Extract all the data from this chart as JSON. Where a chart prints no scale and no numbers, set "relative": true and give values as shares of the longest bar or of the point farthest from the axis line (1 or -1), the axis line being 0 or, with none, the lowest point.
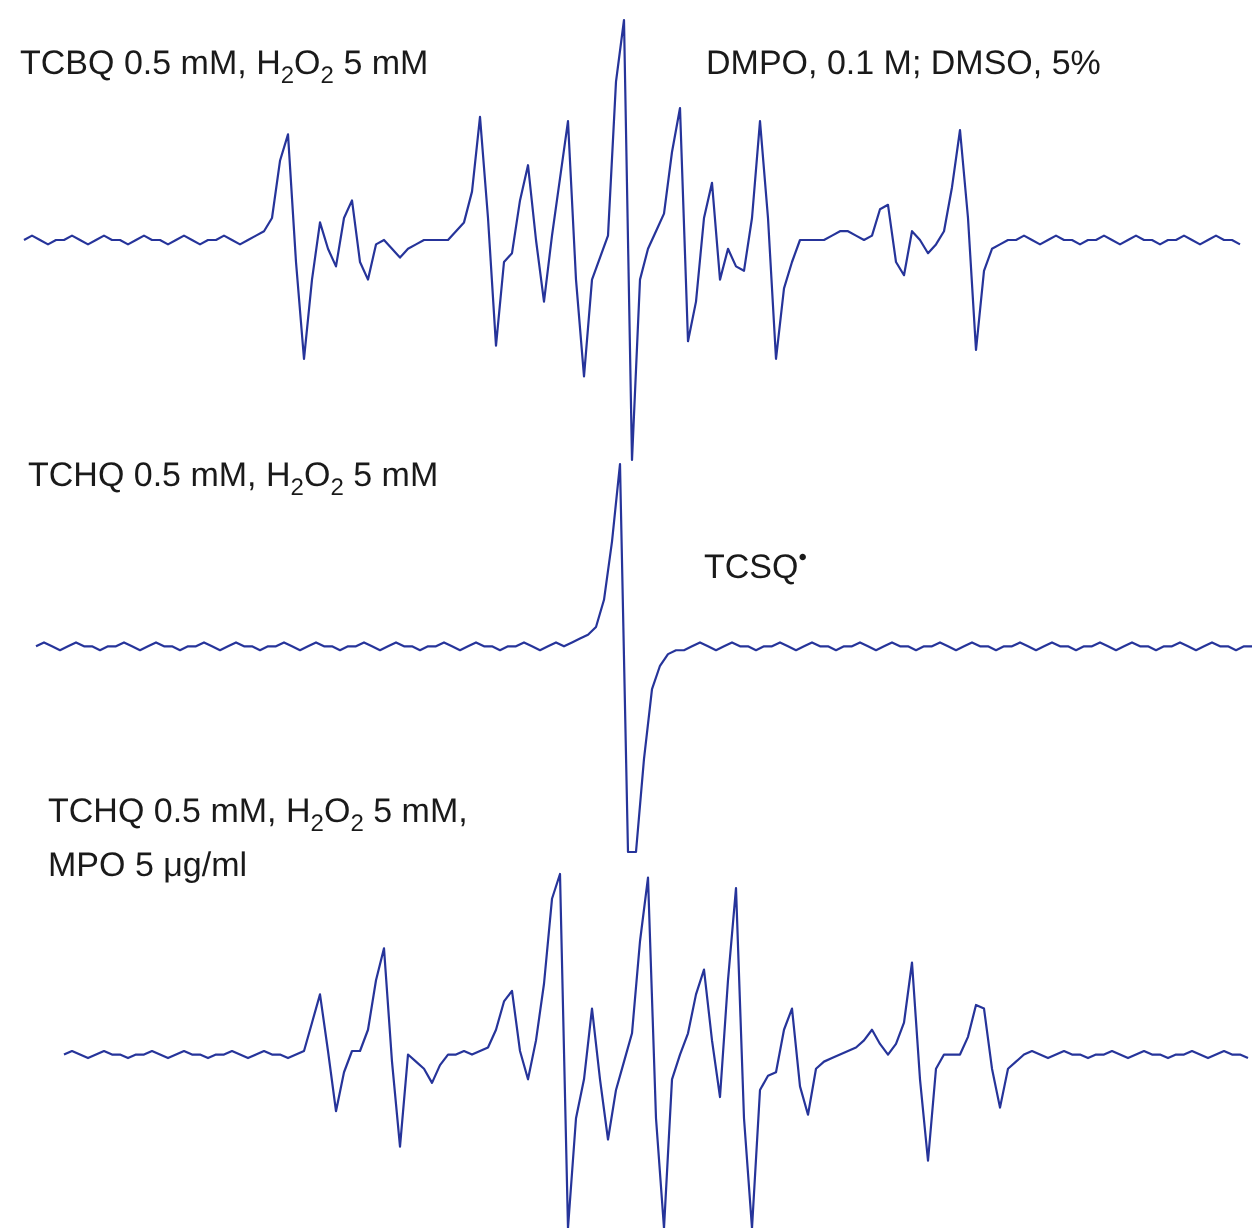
{
  "chart_data": [
    {
      "type": "line",
      "relative": true,
      "color": "#26349a",
      "annotations": [
        "TCBQ 0.5 mM, H$_{2}$O$_{2}$ 5 mM",
        "DMPO, 0.1 M; DMSO, 5%"
      ],
      "categories": [
        null,
        null,
        null,
        null,
        null,
        null,
        null,
        null,
        null,
        null,
        null,
        null,
        null,
        null,
        null,
        null,
        null,
        null,
        null,
        null,
        null,
        null,
        null,
        null,
        null,
        null,
        null,
        null,
        null,
        null,
        null,
        null,
        null,
        null,
        null,
        null,
        null,
        null,
        null,
        null,
        null,
        null,
        null,
        null,
        null,
        null,
        null,
        null,
        null,
        null,
        null,
        null,
        null,
        null,
        null,
        null,
        null,
        null,
        null,
        null,
        null,
        null,
        null,
        null,
        null,
        null,
        null,
        null,
        null,
        null,
        null,
        null,
        null,
        null,
        null,
        null,
        null,
        null,
        null,
        null,
        null,
        null,
        null,
        null,
        null,
        null,
        null,
        null,
        null,
        null,
        null,
        null,
        null,
        null,
        null,
        null,
        null,
        null,
        null,
        null,
        null,
        null,
        null,
        null,
        null,
        null,
        null,
        null,
        null,
        null,
        null,
        null,
        null,
        null,
        null,
        null,
        null,
        null,
        null,
        null,
        null,
        null,
        null,
        null,
        null,
        null,
        null,
        null,
        null,
        null,
        null,
        null,
        null,
        null,
        null,
        null,
        null,
        null,
        null,
        null,
        null,
        null,
        null,
        null,
        null,
        null,
        null,
        null,
        null,
        null,
        null,
        null,
        null
      ],
      "values": [
        0.5,
        0.51,
        0.5,
        0.49,
        0.5,
        0.5,
        0.51,
        0.5,
        0.49,
        0.5,
        0.51,
        0.5,
        0.5,
        0.49,
        0.5,
        0.51,
        0.5,
        0.5,
        0.49,
        0.5,
        0.51,
        0.5,
        0.49,
        0.5,
        0.5,
        0.51,
        0.5,
        0.49,
        0.5,
        0.51,
        0.52,
        0.55,
        0.68,
        0.74,
        0.45,
        0.23,
        0.41,
        0.54,
        0.48,
        0.44,
        0.55,
        0.59,
        0.45,
        0.41,
        0.49,
        0.5,
        0.48,
        0.46,
        0.48,
        0.49,
        0.5,
        0.5,
        0.5,
        0.5,
        0.52,
        0.54,
        0.61,
        0.78,
        0.55,
        0.26,
        0.45,
        0.47,
        0.59,
        0.67,
        0.5,
        0.36,
        0.51,
        0.64,
        0.77,
        0.41,
        0.19,
        0.41,
        0.46,
        0.51,
        0.86,
        1.0,
        0.0,
        0.41,
        0.48,
        0.52,
        0.56,
        0.7,
        0.8,
        0.27,
        0.36,
        0.55,
        0.63,
        0.41,
        0.48,
        0.44,
        0.43,
        0.55,
        0.77,
        0.55,
        0.23,
        0.39,
        0.45,
        0.5,
        0.5,
        0.5,
        0.5,
        0.51,
        0.52,
        0.52,
        0.51,
        0.5,
        0.51,
        0.57,
        0.58,
        0.45,
        0.42,
        0.52,
        0.5,
        0.47,
        0.49,
        0.52,
        0.62,
        0.75,
        0.55,
        0.25,
        0.43,
        0.48,
        0.49,
        0.5,
        0.5,
        0.51,
        0.5,
        0.49,
        0.5,
        0.51,
        0.5,
        0.5,
        0.49,
        0.5,
        0.5,
        0.51,
        0.5,
        0.49,
        0.5,
        0.51,
        0.5,
        0.5,
        0.49,
        0.5,
        0.5,
        0.51,
        0.5,
        0.49,
        0.5,
        0.51,
        0.5,
        0.5,
        0.49
      ]
    },
    {
      "type": "line",
      "relative": true,
      "color": "#26349a",
      "annotations": [
        "TCHQ 0.5 mM, H$_{2}$O$_{2}$ 5 mM",
        "TCSQ$^{•}$"
      ],
      "categories": [
        null,
        null,
        null,
        null,
        null,
        null,
        null,
        null,
        null,
        null,
        null,
        null,
        null,
        null,
        null,
        null,
        null,
        null,
        null,
        null,
        null,
        null,
        null,
        null,
        null,
        null,
        null,
        null,
        null,
        null,
        null,
        null,
        null,
        null,
        null,
        null,
        null,
        null,
        null,
        null,
        null,
        null,
        null,
        null,
        null,
        null,
        null,
        null,
        null,
        null,
        null,
        null,
        null,
        null,
        null,
        null,
        null,
        null,
        null,
        null,
        null,
        null,
        null,
        null,
        null,
        null,
        null,
        null,
        null,
        null,
        null,
        null,
        null,
        null,
        null,
        null,
        null,
        null,
        null,
        null,
        null,
        null,
        null,
        null,
        null,
        null,
        null,
        null,
        null,
        null,
        null,
        null,
        null,
        null,
        null,
        null,
        null,
        null,
        null,
        null,
        null,
        null,
        null,
        null,
        null,
        null,
        null,
        null,
        null,
        null,
        null,
        null,
        null,
        null,
        null,
        null,
        null,
        null,
        null,
        null,
        null,
        null,
        null,
        null,
        null,
        null,
        null,
        null,
        null,
        null,
        null,
        null,
        null,
        null,
        null,
        null,
        null,
        null,
        null,
        null,
        null,
        null,
        null,
        null,
        null,
        null,
        null,
        null,
        null,
        null,
        null,
        null,
        null
      ],
      "values": [
        0.53,
        0.54,
        0.53,
        0.52,
        0.53,
        0.54,
        0.53,
        0.53,
        0.52,
        0.53,
        0.53,
        0.54,
        0.53,
        0.52,
        0.53,
        0.54,
        0.53,
        0.53,
        0.52,
        0.53,
        0.53,
        0.54,
        0.53,
        0.52,
        0.53,
        0.54,
        0.53,
        0.53,
        0.52,
        0.53,
        0.53,
        0.54,
        0.53,
        0.52,
        0.53,
        0.54,
        0.53,
        0.53,
        0.52,
        0.53,
        0.53,
        0.54,
        0.53,
        0.52,
        0.53,
        0.54,
        0.53,
        0.53,
        0.52,
        0.53,
        0.53,
        0.54,
        0.53,
        0.52,
        0.53,
        0.54,
        0.53,
        0.53,
        0.52,
        0.53,
        0.53,
        0.54,
        0.53,
        0.52,
        0.53,
        0.54,
        0.53,
        0.54,
        0.55,
        0.56,
        0.58,
        0.65,
        0.8,
        1.0,
        0.0,
        0.0,
        0.24,
        0.42,
        0.48,
        0.51,
        0.52,
        0.52,
        0.53,
        0.54,
        0.53,
        0.52,
        0.53,
        0.54,
        0.53,
        0.53,
        0.52,
        0.53,
        0.53,
        0.54,
        0.53,
        0.52,
        0.53,
        0.54,
        0.53,
        0.53,
        0.52,
        0.53,
        0.53,
        0.54,
        0.53,
        0.52,
        0.53,
        0.54,
        0.53,
        0.53,
        0.52,
        0.53,
        0.53,
        0.54,
        0.53,
        0.52,
        0.53,
        0.54,
        0.53,
        0.53,
        0.52,
        0.53,
        0.53,
        0.54,
        0.53,
        0.52,
        0.53,
        0.54,
        0.53,
        0.53,
        0.52,
        0.53,
        0.53,
        0.54,
        0.53,
        0.52,
        0.53,
        0.54,
        0.53,
        0.53,
        0.52,
        0.53,
        0.53,
        0.54,
        0.53,
        0.52,
        0.53,
        0.54,
        0.53,
        0.53,
        0.52,
        0.53,
        0.53
      ]
    },
    {
      "type": "line",
      "relative": true,
      "color": "#26349a",
      "annotations": [
        "TCHQ 0.5 mM, H$_{2}$O$_{2}$ 5 mM,",
        "MPO 5 μg/ml"
      ],
      "categories": [
        null,
        null,
        null,
        null,
        null,
        null,
        null,
        null,
        null,
        null,
        null,
        null,
        null,
        null,
        null,
        null,
        null,
        null,
        null,
        null,
        null,
        null,
        null,
        null,
        null,
        null,
        null,
        null,
        null,
        null,
        null,
        null,
        null,
        null,
        null,
        null,
        null,
        null,
        null,
        null,
        null,
        null,
        null,
        null,
        null,
        null,
        null,
        null,
        null,
        null,
        null,
        null,
        null,
        null,
        null,
        null,
        null,
        null,
        null,
        null,
        null,
        null,
        null,
        null,
        null,
        null,
        null,
        null,
        null,
        null,
        null,
        null,
        null,
        null,
        null,
        null,
        null,
        null,
        null,
        null,
        null,
        null,
        null,
        null,
        null,
        null,
        null,
        null,
        null,
        null,
        null,
        null,
        null,
        null,
        null,
        null,
        null,
        null,
        null,
        null,
        null,
        null,
        null,
        null,
        null,
        null,
        null,
        null,
        null,
        null,
        null,
        null,
        null,
        null,
        null,
        null,
        null,
        null,
        null,
        null,
        null,
        null,
        null,
        null,
        null,
        null,
        null,
        null,
        null,
        null,
        null,
        null,
        null,
        null,
        null,
        null,
        null,
        null,
        null,
        null,
        null,
        null,
        null,
        null,
        null,
        null,
        null,
        null,
        null
      ],
      "values": [
        0.49,
        0.5,
        0.49,
        0.48,
        0.49,
        0.5,
        0.49,
        0.49,
        0.48,
        0.49,
        0.49,
        0.5,
        0.49,
        0.48,
        0.49,
        0.5,
        0.49,
        0.49,
        0.48,
        0.49,
        0.49,
        0.5,
        0.49,
        0.48,
        0.49,
        0.5,
        0.49,
        0.49,
        0.48,
        0.49,
        0.5,
        0.58,
        0.66,
        0.5,
        0.33,
        0.44,
        0.5,
        0.5,
        0.56,
        0.7,
        0.79,
        0.47,
        0.23,
        0.49,
        0.47,
        0.45,
        0.41,
        0.46,
        0.49,
        0.49,
        0.5,
        0.49,
        0.5,
        0.51,
        0.56,
        0.64,
        0.67,
        0.5,
        0.42,
        0.53,
        0.69,
        0.93,
        1.0,
        0.0,
        0.31,
        0.42,
        0.62,
        0.42,
        0.25,
        0.39,
        0.47,
        0.55,
        0.81,
        0.99,
        0.31,
        0.0,
        0.42,
        0.49,
        0.55,
        0.66,
        0.73,
        0.53,
        0.37,
        0.7,
        0.96,
        0.31,
        0.0,
        0.39,
        0.43,
        0.44,
        0.56,
        0.62,
        0.4,
        0.32,
        0.45,
        0.47,
        0.48,
        0.49,
        0.5,
        0.51,
        0.53,
        0.56,
        0.52,
        0.49,
        0.52,
        0.58,
        0.75,
        0.42,
        0.19,
        0.45,
        0.49,
        0.49,
        0.49,
        0.54,
        0.63,
        0.62,
        0.45,
        0.34,
        0.45,
        0.47,
        0.49,
        0.5,
        0.49,
        0.48,
        0.49,
        0.5,
        0.49,
        0.49,
        0.48,
        0.49,
        0.49,
        0.5,
        0.49,
        0.48,
        0.49,
        0.5,
        0.49,
        0.49,
        0.48,
        0.49,
        0.49,
        0.5,
        0.49,
        0.48,
        0.49,
        0.5,
        0.49,
        0.49,
        0.48
      ]
    }
  ]
}
